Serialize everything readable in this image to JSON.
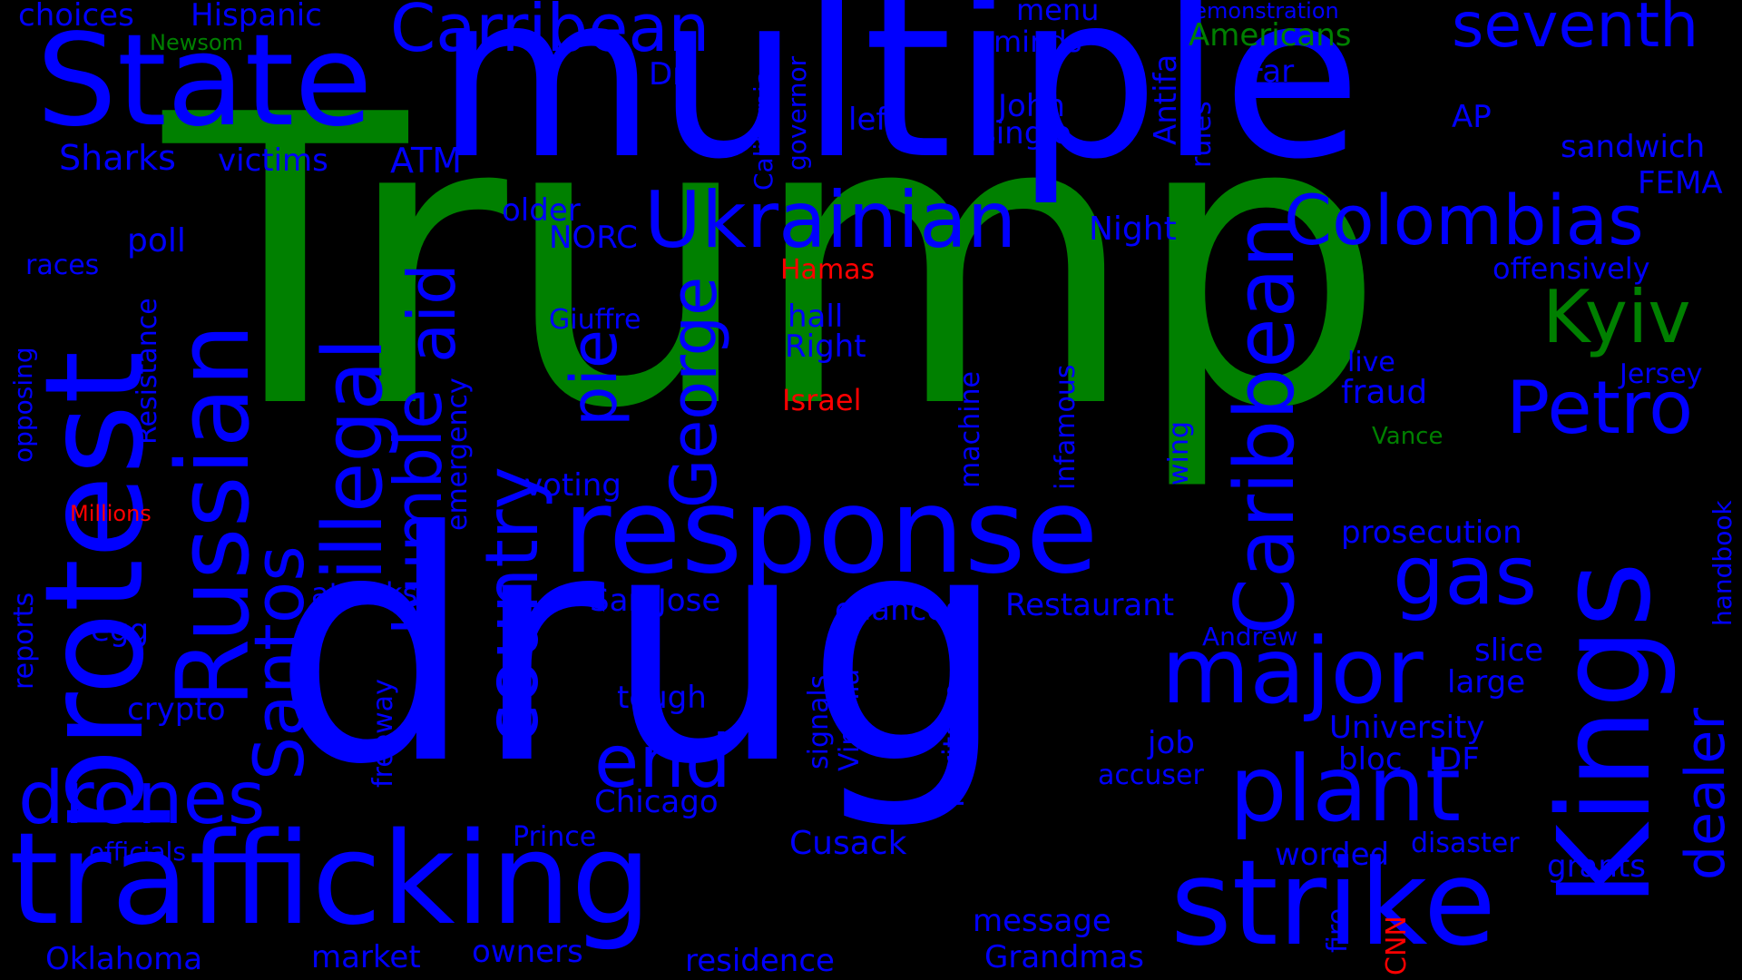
{
  "colors": {
    "background": "#000000",
    "blue": "#0000FF",
    "green": "#008000",
    "red": "#FF0000"
  },
  "words": {
    "trump": "Trump",
    "drug": "drug",
    "multiple": "multiple",
    "state": "State",
    "trafficking": "trafficking",
    "response": "response",
    "strike": "strike",
    "protest": "protest",
    "kings": "Kings",
    "russian": "Russian",
    "ukrainian": "Ukrainian",
    "colombias": "Colombias",
    "carribean": "Carribean",
    "caribbean": "Caribbean",
    "plant": "plant",
    "major": "major",
    "illegal": "illegal",
    "humble": "humble",
    "aid": "aid",
    "country": "country",
    "drones": "drones",
    "end": "end",
    "gas": "gas",
    "petro": "Petro",
    "kyiv": "Kyiv",
    "george": "George",
    "santos": "Santos",
    "pie": "pie",
    "dealer": "dealer",
    "seventh": "seventh",
    "choices": "choices",
    "hispanic": "Hispanic",
    "newsom": "Newsom",
    "menu": "menu",
    "minds": "minds",
    "demonstration": "demonstration",
    "americans": "Americans",
    "dr": "Dr",
    "california": "California",
    "governor": "governor",
    "antifa": "Antifa",
    "far": "Far",
    "rules": "rules",
    "john": "John",
    "single": "single",
    "left": "left",
    "ap": "AP",
    "sandwich": "sandwich",
    "fema": "FEMA",
    "sharks": "Sharks",
    "victims": "victims",
    "atm": "ATM",
    "older": "older",
    "norc": "NORC",
    "night": "Night",
    "poll": "poll",
    "offensively": "offensively",
    "races": "races",
    "hamas": "Hamas",
    "giuffre": "Giuffre",
    "hall": "hall",
    "right": "Right",
    "opposing": "opposing",
    "resistance": "Resistance",
    "live": "live",
    "jersey": "Jersey",
    "israel": "Israel",
    "fraud": "fraud",
    "machine": "machine",
    "infamous": "infamous",
    "emergency": "emergency",
    "vance": "Vance",
    "wing": "wing",
    "voting": "voting",
    "millions": "Millions",
    "handbook": "handbook",
    "prosecution": "prosecution",
    "reports": "reports",
    "attacks": "attacks",
    "san_jose": "San Jose",
    "chances": "chances",
    "restaurant": "Restaurant",
    "egg": "egg",
    "andrew": "Andrew",
    "slice": "slice",
    "large": "large",
    "crypto": "crypto",
    "tough": "tough",
    "signals": "signals",
    "virginia": "Virginia",
    "heritage": "Heritage",
    "freeway": "freeway",
    "university": "University",
    "job": "job",
    "bloc": "bloc",
    "idf": "IDF",
    "accuser": "accuser",
    "chicago": "Chicago",
    "prince": "Prince",
    "cusack": "Cusack",
    "officials": "officials",
    "worded": "worded",
    "disaster": "disaster",
    "grants": "grants",
    "message": "message",
    "fire": "fire",
    "cnn": "CNN",
    "oklahoma": "Oklahoma",
    "market": "market",
    "owners": "owners",
    "residence": "residence",
    "grandmas": "Grandmas"
  }
}
